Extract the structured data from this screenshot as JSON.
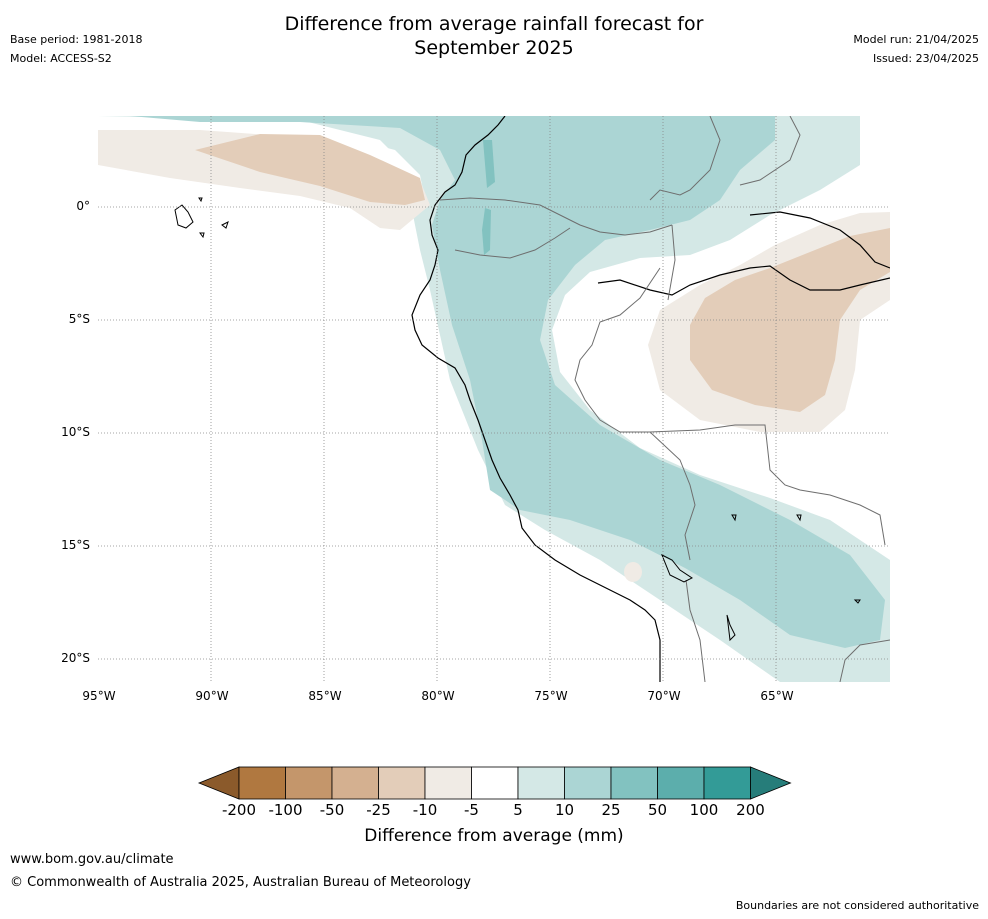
{
  "header": {
    "title_line1": "Difference from average rainfall forecast for",
    "title_line2": "September 2025",
    "base_period": "Base period: 1981-2018",
    "model": "Model: ACCESS-S2",
    "model_run": "Model run: 21/04/2025",
    "issued": "Issued: 23/04/2025"
  },
  "map": {
    "lat_labels": [
      "0°",
      "5°S",
      "10°S",
      "15°S",
      "20°S"
    ],
    "lon_labels": [
      "95°W",
      "90°W",
      "85°W",
      "80°W",
      "75°W",
      "70°W",
      "65°W"
    ],
    "region": "North-western South America",
    "gridlines": "dotted"
  },
  "colorbar": {
    "ticks": [
      "-200",
      "-100",
      "-50",
      "-25",
      "-10",
      "-5",
      "5",
      "10",
      "25",
      "50",
      "100",
      "200"
    ],
    "colors": [
      "#8b5a2b",
      "#b07840",
      "#c4966b",
      "#d4b090",
      "#e3cdb9",
      "#f0ebe5",
      "#ffffff",
      "#d4e8e6",
      "#abd5d4",
      "#82c2c0",
      "#5caeac",
      "#339b97",
      "#267d7a"
    ],
    "label": "Difference from average (mm)"
  },
  "footer": {
    "website": "www.bom.gov.au/climate",
    "copyright": "© Commonwealth of Australia 2025, Australian Bureau of Meteorology",
    "disclaimer": "Boundaries are not considered authoritative"
  }
}
